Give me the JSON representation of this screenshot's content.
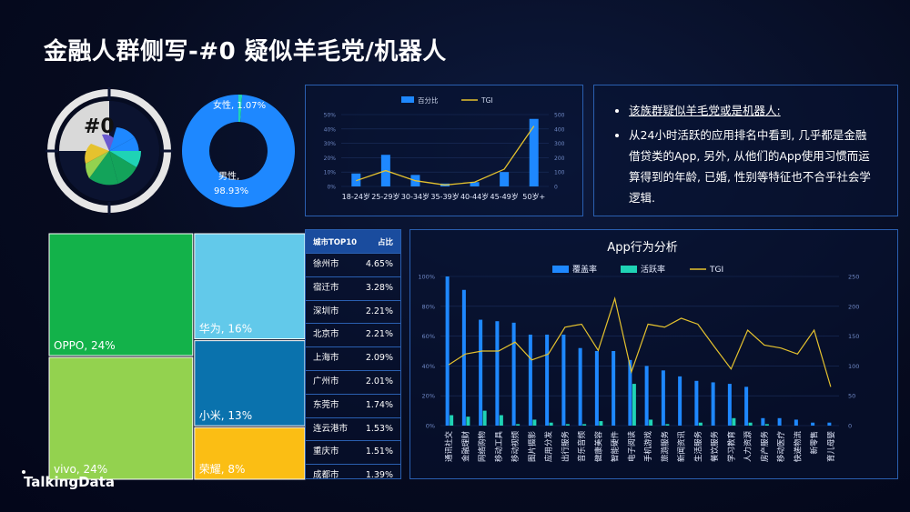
{
  "title": "金融人群侧写-#0 疑似羊毛党/机器人",
  "logo": "TalkingData",
  "badge": "#0",
  "colors": {
    "accent": "#1e88ff",
    "teal": "#1fd3b5",
    "gold": "#e5c22e"
  },
  "bullets": [
    "该族群疑似羊毛党或是机器人:",
    "从24小时活跃的应用排名中看到, 几乎都是金融借贷类的App, 另外, 从他们的App使用习惯而运算得到的年龄, 已婚, 性别等特征也不合乎社会学逻辑."
  ],
  "city": {
    "header": [
      "城市TOP10",
      "占比"
    ],
    "rows": [
      [
        "徐州市",
        "4.65%"
      ],
      [
        "宿迁市",
        "3.28%"
      ],
      [
        "深圳市",
        "2.21%"
      ],
      [
        "北京市",
        "2.21%"
      ],
      [
        "上海市",
        "2.09%"
      ],
      [
        "广州市",
        "2.01%"
      ],
      [
        "东莞市",
        "1.74%"
      ],
      [
        "连云港市",
        "1.53%"
      ],
      [
        "重庆市",
        "1.51%"
      ],
      [
        "成都市",
        "1.39%"
      ]
    ]
  },
  "chart_data": [
    {
      "type": "pie",
      "name": "gender",
      "slices": [
        {
          "label": "女性",
          "value": 1.07,
          "text": "女性, 1.07%",
          "color": "#1fd3b5"
        },
        {
          "label": "男性",
          "value": 98.93,
          "text": "男性, 98.93%",
          "color": "#1e88ff"
        }
      ]
    },
    {
      "type": "bar",
      "name": "age",
      "categories": [
        "18-24岁",
        "25-29岁",
        "30-34岁",
        "35-39岁",
        "40-44岁",
        "45-49岁",
        "50岁+"
      ],
      "series": [
        {
          "name": "百分比",
          "values": [
            9,
            22,
            8,
            2,
            3,
            10,
            47
          ],
          "axis": "left"
        },
        {
          "name": "TGI",
          "type": "line",
          "values": [
            40,
            110,
            40,
            10,
            30,
            120,
            420
          ],
          "axis": "right"
        }
      ],
      "yleft_ticks": [
        "0%",
        "10%",
        "20%",
        "30%",
        "40%",
        "50%"
      ],
      "yright_ticks": [
        "0",
        "100",
        "200",
        "300",
        "400",
        "500"
      ],
      "ylim_left": [
        0,
        50
      ],
      "ylim_right": [
        0,
        500
      ]
    },
    {
      "type": "treemap",
      "name": "brand",
      "cells": [
        {
          "label": "OPPO, 24%",
          "value": 24,
          "color": "#13b24a"
        },
        {
          "label": "vivo, 24%",
          "value": 24,
          "color": "#93d24f"
        },
        {
          "label": "华为, 16%",
          "value": 16,
          "color": "#62c9ea"
        },
        {
          "label": "小米, 13%",
          "value": 13,
          "color": "#0a72ad"
        },
        {
          "label": "荣耀, 8%",
          "value": 8,
          "color": "#fbbe14"
        }
      ]
    },
    {
      "type": "bar",
      "name": "app",
      "title": "App行为分析",
      "categories": [
        "通讯社交",
        "金融理财",
        "网络购物",
        "移动工具",
        "移动视频",
        "图片摄影",
        "应用分发",
        "出行服务",
        "音乐音频",
        "健康美容",
        "智能硬件",
        "电子阅读",
        "手机游戏",
        "旅游服务",
        "新闻资讯",
        "生活服务",
        "餐饮服务",
        "学习教育",
        "人力资源",
        "房产服务",
        "移动医疗",
        "快递物流",
        "新零售",
        "育儿母婴"
      ],
      "series": [
        {
          "name": "覆盖率",
          "values": [
            100,
            91,
            71,
            70,
            69,
            61,
            61,
            61,
            52,
            50,
            50,
            44,
            40,
            37,
            33,
            30,
            29,
            28,
            26,
            5,
            5,
            4,
            2,
            2
          ],
          "axis": "left"
        },
        {
          "name": "活跃率",
          "values": [
            7,
            6,
            10,
            7,
            1,
            4,
            2,
            1,
            1,
            3,
            0,
            28,
            4,
            1,
            0,
            2,
            0,
            5,
            2,
            1,
            0,
            0,
            0,
            0
          ],
          "axis": "left"
        },
        {
          "name": "TGI",
          "type": "line",
          "values": [
            102,
            120,
            125,
            125,
            140,
            110,
            120,
            165,
            170,
            126,
            213,
            90,
            170,
            165,
            180,
            170,
            132,
            95,
            160,
            135,
            130,
            120,
            160,
            65
          ],
          "axis": "right"
        }
      ],
      "yleft_ticks": [
        "0%",
        "20%",
        "40%",
        "60%",
        "80%",
        "100%"
      ],
      "yright_ticks": [
        "0",
        "50",
        "100",
        "150",
        "200",
        "250"
      ],
      "ylim_left": [
        0,
        100
      ],
      "ylim_right": [
        0,
        250
      ]
    }
  ]
}
